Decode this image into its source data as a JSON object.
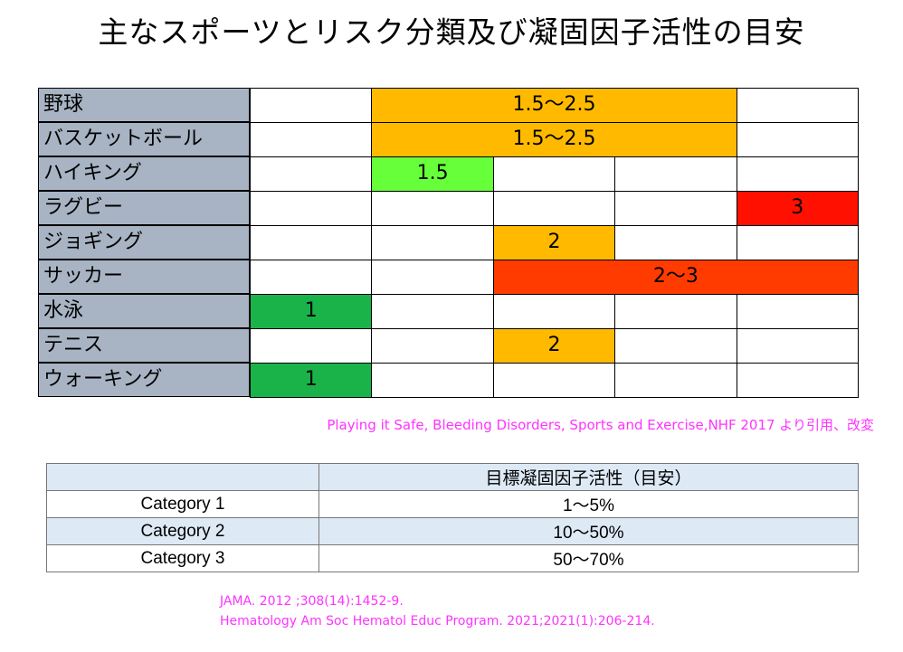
{
  "title": "主なスポーツとリスク分類及び凝固因子活性の目安",
  "colors": {
    "name_bg": "#a8b4c4",
    "orange": "#ffba00",
    "light_green": "#66ff3a",
    "green": "#19b34a",
    "red": "#ff1000",
    "red_orange": "#ff3b00",
    "citation": "#ff33ff",
    "table_shade": "#dde9f5"
  },
  "sports": [
    {
      "name": "野球",
      "bar": {
        "label": "1.5～2.5",
        "start": 1,
        "span": 3,
        "color": "orange"
      }
    },
    {
      "name": "バスケットボール",
      "bar": {
        "label": "1.5～2.5",
        "start": 1,
        "span": 3,
        "color": "orange"
      }
    },
    {
      "name": "ハイキング",
      "bar": {
        "label": "1.5",
        "start": 1,
        "span": 1,
        "color": "light_green"
      }
    },
    {
      "name": "ラグビー",
      "bar": {
        "label": "3",
        "start": 4,
        "span": 1,
        "color": "red"
      }
    },
    {
      "name": "ジョギング",
      "bar": {
        "label": "2",
        "start": 2,
        "span": 1,
        "color": "orange"
      }
    },
    {
      "name": "サッカー",
      "bar": {
        "label": "2～3",
        "start": 2,
        "span": 3,
        "color": "red_orange"
      }
    },
    {
      "name": "水泳",
      "bar": {
        "label": "1",
        "start": 0,
        "span": 1,
        "color": "green"
      }
    },
    {
      "name": "テニス",
      "bar": {
        "label": "2",
        "start": 2,
        "span": 1,
        "color": "orange"
      }
    },
    {
      "name": "ウォーキング",
      "bar": {
        "label": "1",
        "start": 0,
        "span": 1,
        "color": "green"
      }
    }
  ],
  "citation1": "Playing it Safe, Bleeding Disorders, Sports and Exercise,NHF 2017 より引用、改変",
  "category_table": {
    "header": [
      "",
      "目標凝固因子活性（目安）"
    ],
    "rows": [
      {
        "category": "Category 1",
        "value": "1～5%"
      },
      {
        "category": "Category 2",
        "value": "10～50%"
      },
      {
        "category": "Category 3",
        "value": "50～70%"
      }
    ]
  },
  "citation2_lines": [
    "JAMA. 2012 ;308(14):1452-9.",
    "Hematology Am Soc Hematol Educ Program. 2021;2021(1):206-214."
  ]
}
